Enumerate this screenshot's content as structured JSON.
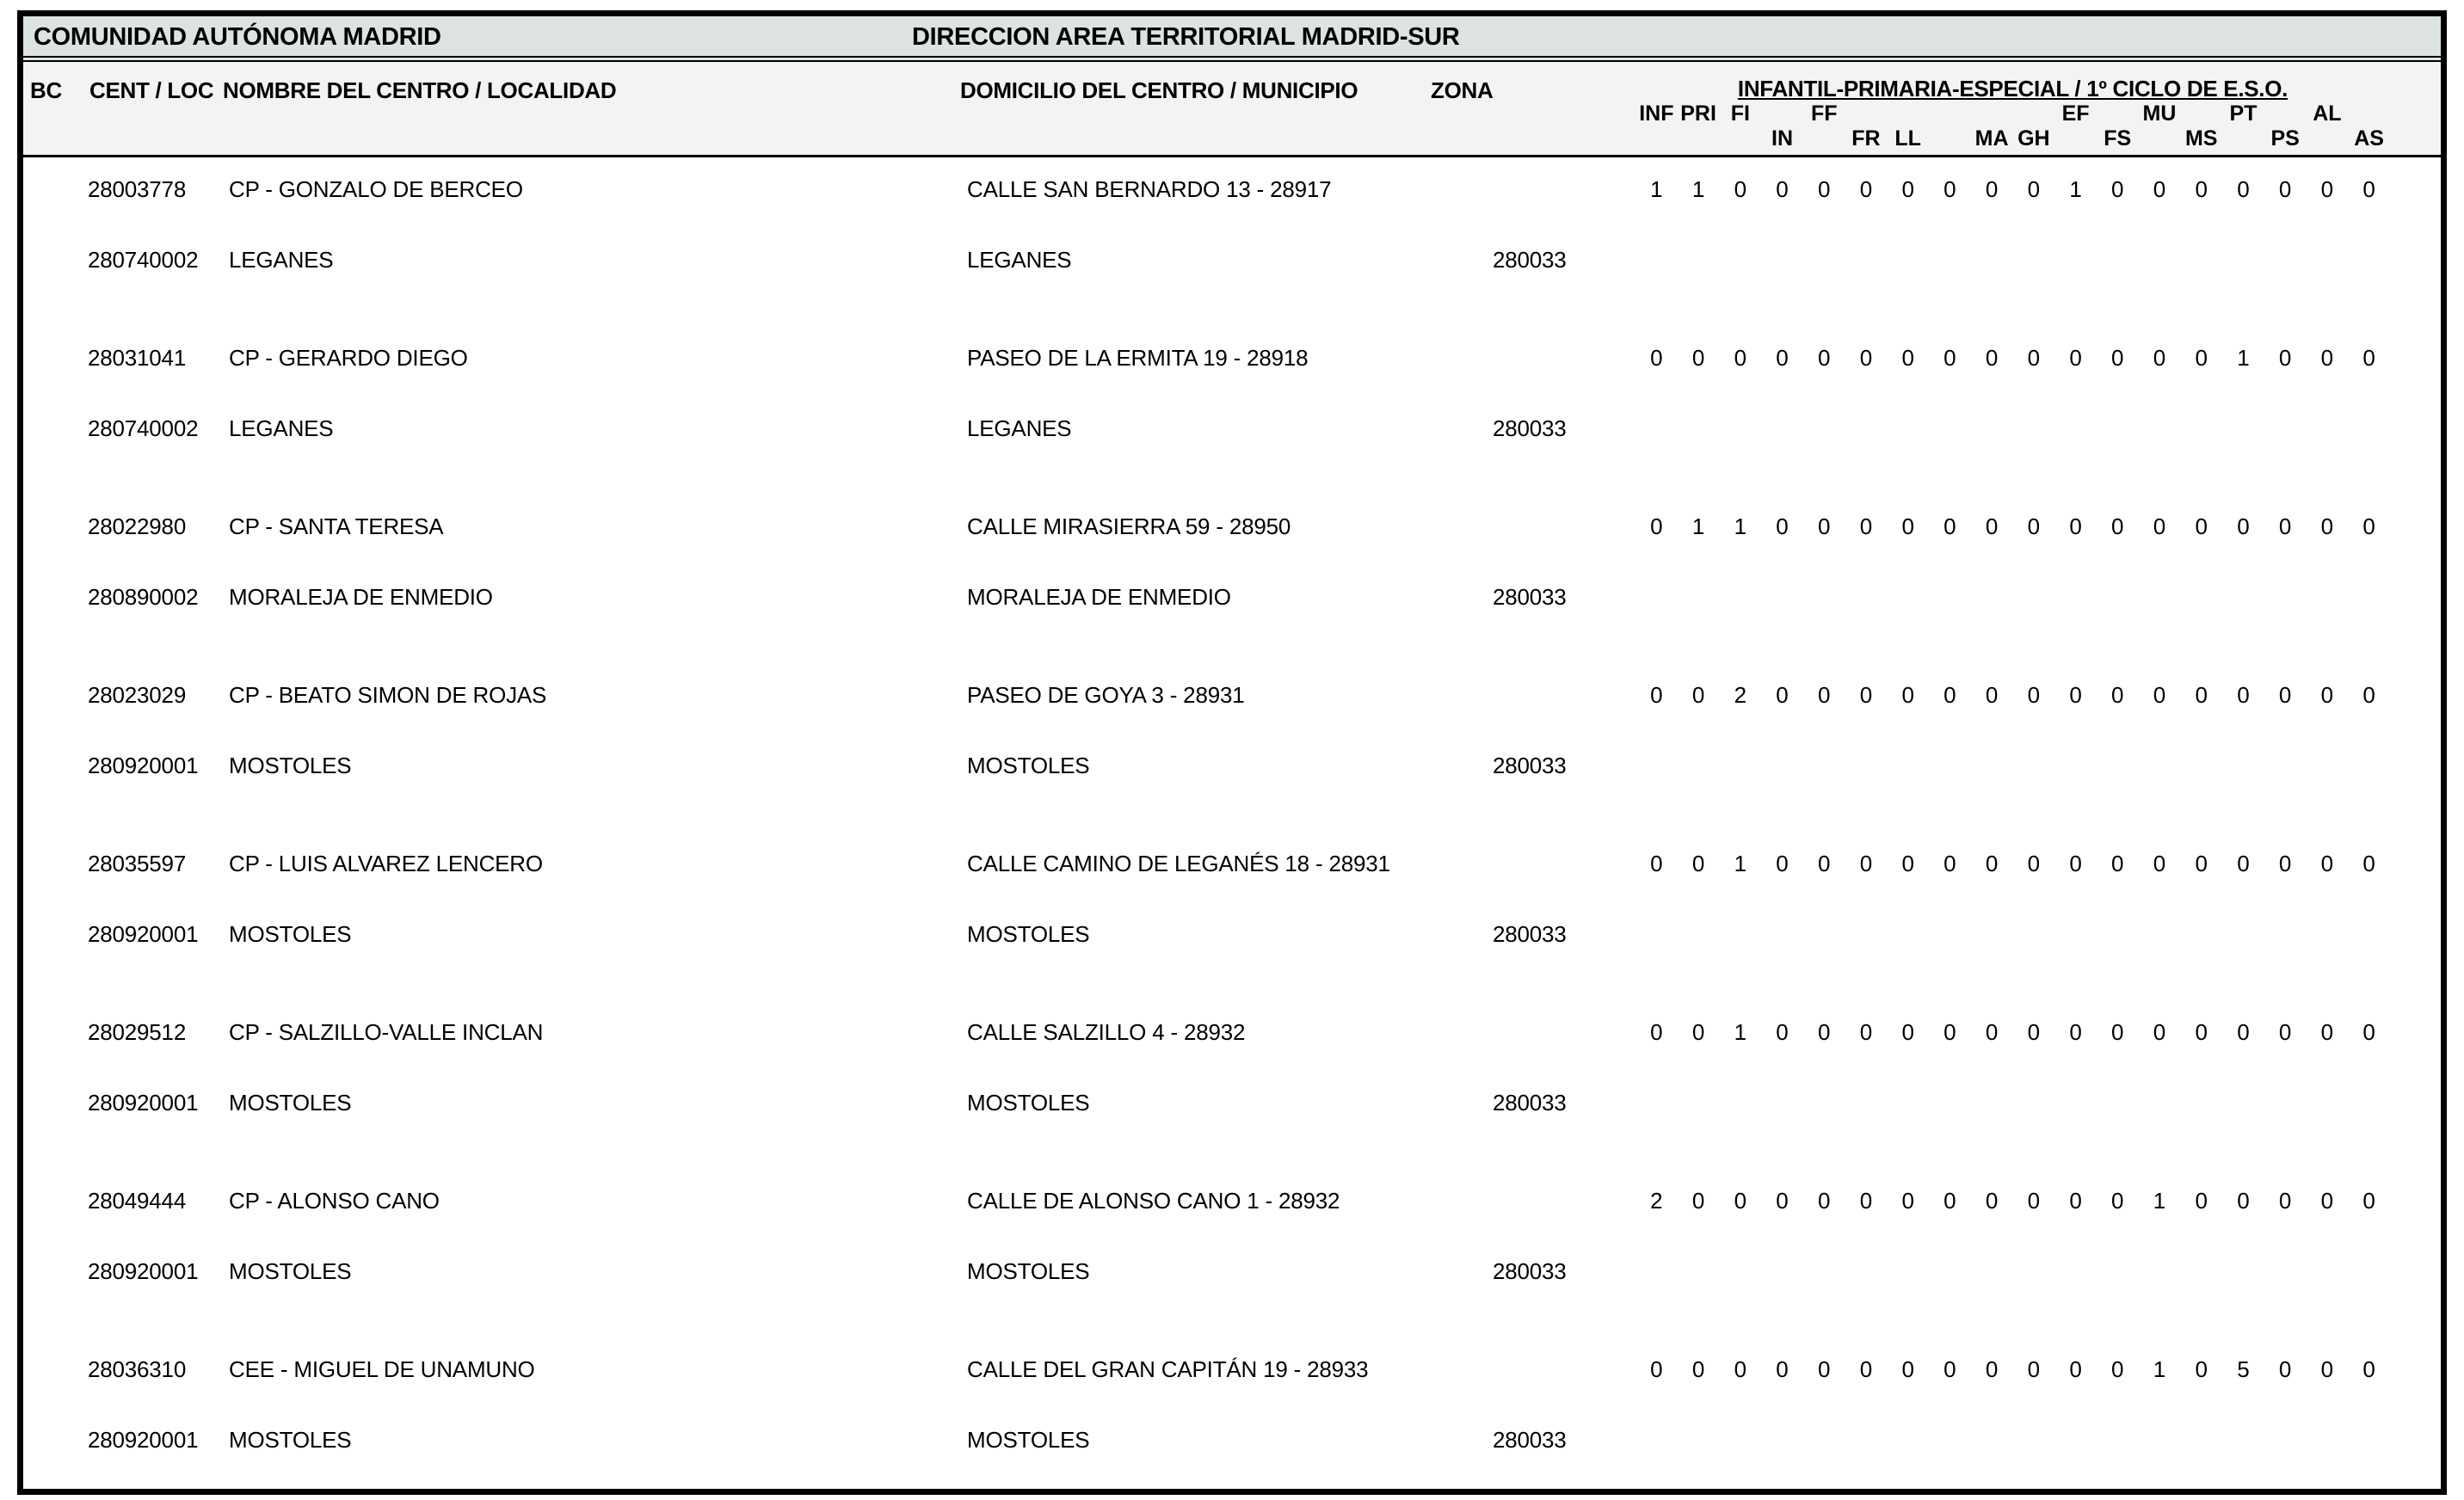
{
  "header": {
    "community": "COMUNIDAD AUTÓNOMA MADRID",
    "direction": "DIRECCION AREA TERRITORIAL MADRID-SUR"
  },
  "columns": {
    "bc": "BC",
    "cent_loc": "CENT / LOC",
    "nombre": "NOMBRE DEL CENTRO / LOCALIDAD",
    "domicilio": "DOMICILIO DEL CENTRO / MUNICIPIO",
    "zona": "ZONA",
    "group": "INFANTIL-PRIMARIA-ESPECIAL / 1º CICLO DE E.S.O."
  },
  "subject_columns": [
    {
      "label": "INF",
      "row": 1
    },
    {
      "label": "PRI",
      "row": 1
    },
    {
      "label": "FI",
      "row": 1
    },
    {
      "label": "IN",
      "row": 2
    },
    {
      "label": "FF",
      "row": 1
    },
    {
      "label": "FR",
      "row": 2
    },
    {
      "label": "LL",
      "row": 2
    },
    {
      "label": "",
      "row": 1
    },
    {
      "label": "MA",
      "row": 2
    },
    {
      "label": "GH",
      "row": 2
    },
    {
      "label": "EF",
      "row": 1
    },
    {
      "label": "FS",
      "row": 2
    },
    {
      "label": "MU",
      "row": 1
    },
    {
      "label": "MS",
      "row": 2
    },
    {
      "label": "PT",
      "row": 1
    },
    {
      "label": "PS",
      "row": 2
    },
    {
      "label": "AL",
      "row": 1
    },
    {
      "label": "AS",
      "row": 2
    }
  ],
  "records": [
    {
      "center_code": "28003778",
      "center_name": "CP - GONZALO DE BERCEO",
      "address": "CALLE SAN BERNARDO 13 - 28917",
      "loc_code": "280740002",
      "locality": "LEGANES",
      "municipality": "LEGANES",
      "zone": "280033",
      "values": [
        1,
        1,
        0,
        0,
        0,
        0,
        0,
        0,
        0,
        0,
        1,
        0,
        0,
        0,
        0,
        0,
        0,
        0
      ]
    },
    {
      "center_code": "28031041",
      "center_name": "CP - GERARDO DIEGO",
      "address": "PASEO DE LA ERMITA 19 - 28918",
      "loc_code": "280740002",
      "locality": "LEGANES",
      "municipality": "LEGANES",
      "zone": "280033",
      "values": [
        0,
        0,
        0,
        0,
        0,
        0,
        0,
        0,
        0,
        0,
        0,
        0,
        0,
        0,
        1,
        0,
        0,
        0
      ]
    },
    {
      "center_code": "28022980",
      "center_name": "CP - SANTA TERESA",
      "address": "CALLE MIRASIERRA 59 - 28950",
      "loc_code": "280890002",
      "locality": "MORALEJA DE ENMEDIO",
      "municipality": "MORALEJA DE ENMEDIO",
      "zone": "280033",
      "values": [
        0,
        1,
        1,
        0,
        0,
        0,
        0,
        0,
        0,
        0,
        0,
        0,
        0,
        0,
        0,
        0,
        0,
        0
      ]
    },
    {
      "center_code": "28023029",
      "center_name": "CP - BEATO SIMON DE ROJAS",
      "address": "PASEO DE GOYA 3 - 28931",
      "loc_code": "280920001",
      "locality": "MOSTOLES",
      "municipality": "MOSTOLES",
      "zone": "280033",
      "values": [
        0,
        0,
        2,
        0,
        0,
        0,
        0,
        0,
        0,
        0,
        0,
        0,
        0,
        0,
        0,
        0,
        0,
        0
      ]
    },
    {
      "center_code": "28035597",
      "center_name": "CP - LUIS ALVAREZ LENCERO",
      "address": "CALLE CAMINO DE LEGANÉS 18 - 28931",
      "loc_code": "280920001",
      "locality": "MOSTOLES",
      "municipality": "MOSTOLES",
      "zone": "280033",
      "values": [
        0,
        0,
        1,
        0,
        0,
        0,
        0,
        0,
        0,
        0,
        0,
        0,
        0,
        0,
        0,
        0,
        0,
        0
      ]
    },
    {
      "center_code": "28029512",
      "center_name": "CP - SALZILLO-VALLE INCLAN",
      "address": "CALLE SALZILLO 4 - 28932",
      "loc_code": "280920001",
      "locality": "MOSTOLES",
      "municipality": "MOSTOLES",
      "zone": "280033",
      "values": [
        0,
        0,
        1,
        0,
        0,
        0,
        0,
        0,
        0,
        0,
        0,
        0,
        0,
        0,
        0,
        0,
        0,
        0
      ]
    },
    {
      "center_code": "28049444",
      "center_name": "CP - ALONSO CANO",
      "address": "CALLE DE ALONSO CANO 1 - 28932",
      "loc_code": "280920001",
      "locality": "MOSTOLES",
      "municipality": "MOSTOLES",
      "zone": "280033",
      "values": [
        2,
        0,
        0,
        0,
        0,
        0,
        0,
        0,
        0,
        0,
        0,
        0,
        1,
        0,
        0,
        0,
        0,
        0
      ]
    },
    {
      "center_code": "28036310",
      "center_name": "CEE - MIGUEL DE UNAMUNO",
      "address": "CALLE DEL GRAN CAPITÁN 19 - 28933",
      "loc_code": "280920001",
      "locality": "MOSTOLES",
      "municipality": "MOSTOLES",
      "zone": "280033",
      "values": [
        0,
        0,
        0,
        0,
        0,
        0,
        0,
        0,
        0,
        0,
        0,
        0,
        1,
        0,
        5,
        0,
        0,
        0
      ]
    }
  ],
  "colors": {
    "title_bar_bg": "#dce3e0",
    "header_band_bg": "#f1f4f2",
    "border": "#000000"
  }
}
